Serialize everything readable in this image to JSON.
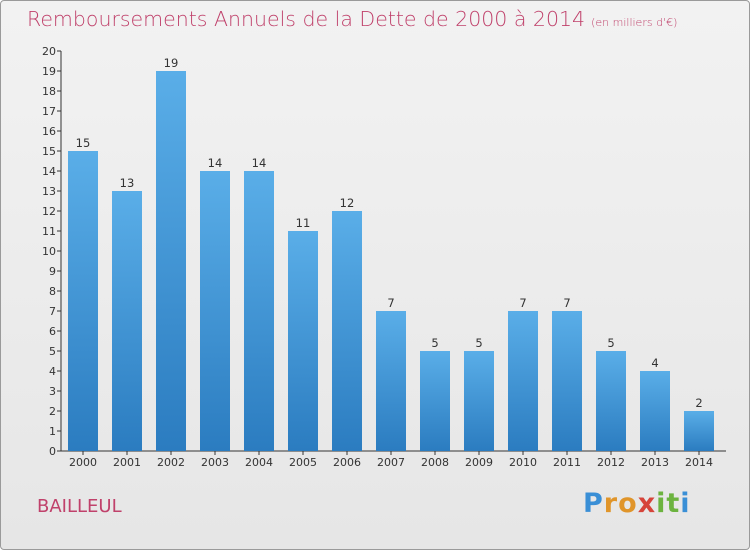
{
  "chart_data": {
    "type": "bar",
    "title": "Remboursements Annuels de la Dette de 2000 à 2014",
    "subtitle": "(en milliers d'€)",
    "categories": [
      "2000",
      "2001",
      "2002",
      "2003",
      "2004",
      "2005",
      "2006",
      "2007",
      "2008",
      "2009",
      "2010",
      "2011",
      "2012",
      "2013",
      "2014"
    ],
    "values": [
      15,
      13,
      19,
      14,
      14,
      11,
      12,
      7,
      5,
      5,
      7,
      7,
      5,
      4,
      2
    ],
    "ylim": [
      0,
      20
    ],
    "yticks": [
      0,
      1,
      2,
      3,
      4,
      5,
      6,
      7,
      8,
      9,
      10,
      11,
      12,
      13,
      14,
      15,
      16,
      17,
      18,
      19,
      20
    ],
    "xlabel": "",
    "ylabel": "",
    "grid": false,
    "bar_color_top": "#5aaee8",
    "bar_color_bottom": "#2b7cc0"
  },
  "footer": {
    "location": "BAILLEUL",
    "brand_letters": [
      "P",
      "r",
      "o",
      "x",
      "i",
      "t",
      "i"
    ],
    "brand_colors": [
      "#3a8fd6",
      "#e0952a",
      "#e0952a",
      "#d6443a",
      "#6cb33f",
      "#6cb33f",
      "#3a8fd6"
    ]
  }
}
